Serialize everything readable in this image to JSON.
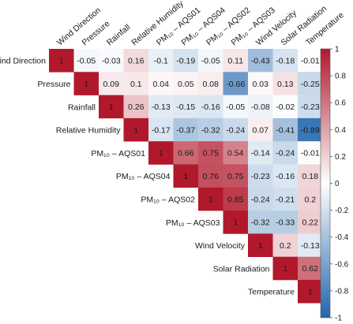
{
  "chart_data": {
    "type": "heatmap",
    "variables": [
      "Wind Direction",
      "Pressure",
      "Rainfall",
      "Relative Humidity",
      "PM10 – AQS01",
      "PM10 – AQS04",
      "PM10 – AQS02",
      "PM10 – AQS03",
      "Wind Velocity",
      "Solar Radiation",
      "Temperature"
    ],
    "row_labels": [
      "Wind Direction",
      "Pressure",
      "Rainfall",
      "Relative Humidity",
      "PM₁₀ – AQS01",
      "PM₁₀ – AQS04",
      "PM₁₀ – AQS02",
      "PM₁₀ – AQS03",
      "Wind Velocity",
      "Solar Radiation",
      "Temperature"
    ],
    "column_labels": [
      "Wind Direction",
      "Pressure",
      "Rainfall",
      "Relative Humidity",
      "PM₁₀ – AQS01",
      "PM₁₀ – AQS04",
      "PM₁₀ – AQS02",
      "PM₁₀ – AQS03",
      "Wind Velocity",
      "Solar Radiation",
      "Temperature"
    ],
    "matrix_upper_triangle": [
      [
        1,
        -0.05,
        -0.03,
        0.16,
        -0.1,
        -0.19,
        -0.05,
        0.11,
        -0.43,
        -0.18,
        -0.01
      ],
      [
        1,
        0.09,
        0.1,
        0.04,
        0.05,
        0.08,
        -0.66,
        0.03,
        0.13,
        -0.25
      ],
      [
        1,
        0.26,
        -0.13,
        -0.15,
        -0.16,
        -0.05,
        -0.08,
        -0.02,
        -0.23
      ],
      [
        1,
        -0.17,
        -0.37,
        -0.32,
        -0.24,
        0.07,
        -0.41,
        -0.89
      ],
      [
        1,
        0.66,
        0.75,
        0.54,
        -0.14,
        -0.24,
        -0.01
      ],
      [
        1,
        0.76,
        0.75,
        -0.23,
        -0.16,
        0.18
      ],
      [
        1,
        0.85,
        -0.24,
        -0.21,
        0.2
      ],
      [
        1,
        -0.32,
        -0.33,
        0.22
      ],
      [
        1,
        0.2,
        -0.13
      ],
      [
        1,
        0.62
      ],
      [
        1
      ]
    ],
    "colorbar": {
      "range": [
        -1,
        1
      ],
      "ticks": [
        "1",
        "0.8",
        "0.6",
        "0.4",
        "0.2",
        "0",
        "-0.2",
        "-0.4",
        "-0.6",
        "-0.8",
        "-1"
      ],
      "tick_values": [
        1,
        0.8,
        0.6,
        0.4,
        0.2,
        0,
        -0.2,
        -0.4,
        -0.6,
        -0.8,
        -1
      ],
      "colors": {
        "negative": "#2166ac",
        "neutral": "#ffffff",
        "positive": "#b2182b"
      }
    },
    "legend_position": "right"
  }
}
